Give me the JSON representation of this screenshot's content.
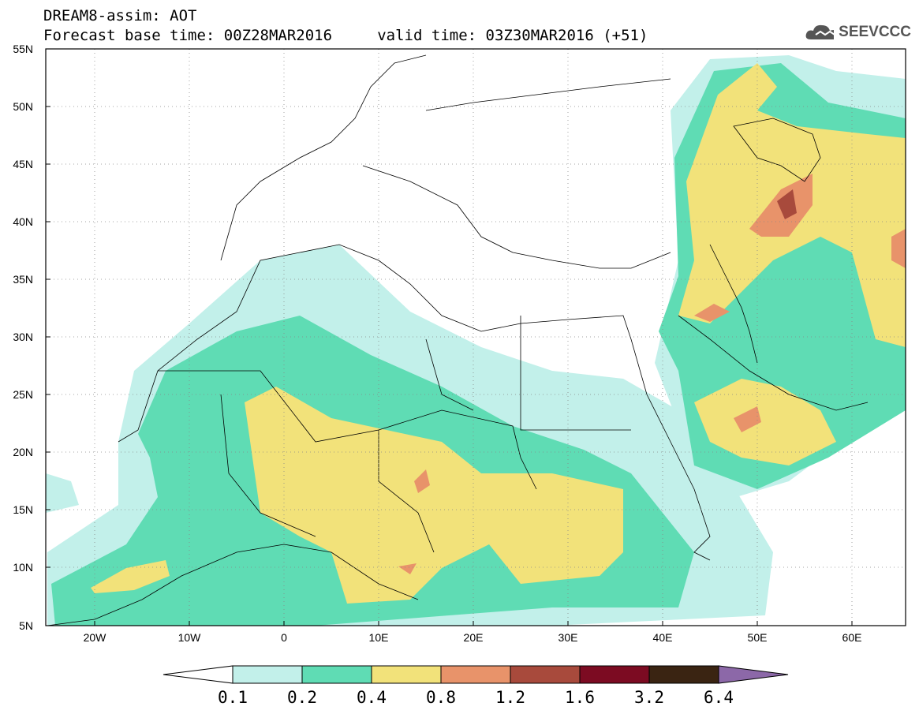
{
  "header": {
    "line1": "DREAM8-assim: AOT",
    "line2": "Forecast base time: 00Z28MAR2016     valid time: 03Z30MAR2016 (+51)"
  },
  "logo": {
    "text": "SEEVCCC",
    "icon": "cloud-icon"
  },
  "map": {
    "lon_range": [
      -25,
      65
    ],
    "lat_range": [
      5,
      55
    ],
    "lat_ticks": [
      "55N",
      "50N",
      "45N",
      "40N",
      "35N",
      "30N",
      "25N",
      "20N",
      "15N",
      "10N",
      "5N"
    ],
    "lon_ticks": [
      "20W",
      "10W",
      "0",
      "10E",
      "20E",
      "30E",
      "40E",
      "50E",
      "60E"
    ],
    "grid": "dotted"
  },
  "colorbar": {
    "labels": [
      "0.1",
      "0.2",
      "0.4",
      "0.8",
      "1.2",
      "1.6",
      "3.2",
      "6.4"
    ],
    "colors": [
      "#ffffff",
      "#c2f0ea",
      "#5fdcb4",
      "#f2e27a",
      "#e8936a",
      "#a84a3c",
      "#7c0b22",
      "#3a2412",
      "#8c68a8"
    ]
  }
}
